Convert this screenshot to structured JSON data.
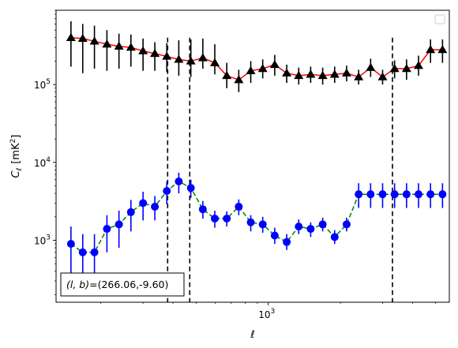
{
  "chart_data": {
    "type": "scatter",
    "xscale": "log",
    "yscale": "log",
    "xlim": [
      130,
      5700
    ],
    "ylim": [
      160,
      900000
    ],
    "xlabel": "ℓ",
    "ylabel": "C_ℓ  [mK²]",
    "ylabel_main": "C",
    "ylabel_sub": "ℓ",
    "ylabel_unit_pre": "[mK",
    "ylabel_unit_sup": "2",
    "ylabel_unit_post": "]",
    "x_tick_labels": [
      {
        "value": 1000,
        "base": "10",
        "exp": "3"
      }
    ],
    "y_tick_labels": [
      {
        "value": 1000,
        "base": "10",
        "exp": "3"
      },
      {
        "value": 10000,
        "base": "10",
        "exp": "4"
      },
      {
        "value": 100000,
        "base": "10",
        "exp": "5"
      }
    ],
    "annotation": "(l, b)=(266.06,-9.60)",
    "annotation_italic": "(l, b)",
    "annotation_value": "=(266.06,-9.60)",
    "legend": {
      "placement": "top-right",
      "entries": []
    },
    "vlines": [
      {
        "x": 380
      },
      {
        "x": 470
      },
      {
        "x": 3300
      }
    ],
    "series": [
      {
        "marker": "triangle",
        "marker_color": "#000000",
        "errorbar_color": "#000000",
        "line_color": "#ff0000",
        "line_style": "solid",
        "x": [
          150,
          168,
          188,
          212,
          238,
          267,
          300,
          336,
          377,
          423,
          475,
          533,
          598,
          671,
          753,
          845,
          948,
          1064,
          1194,
          1340,
          1503,
          1687,
          1893,
          2124,
          2384,
          2675,
          3001,
          3368,
          3779,
          4240,
          4758,
          5339
        ],
        "y": [
          400000,
          390000,
          360000,
          330000,
          310000,
          300000,
          270000,
          250000,
          230000,
          210000,
          200000,
          220000,
          190000,
          130000,
          115000,
          150000,
          160000,
          180000,
          140000,
          130000,
          135000,
          130000,
          135000,
          140000,
          125000,
          165000,
          125000,
          160000,
          160000,
          175000,
          280000,
          280000
        ],
        "yerr_low": [
          230000,
          250000,
          200000,
          180000,
          150000,
          130000,
          120000,
          100000,
          85000,
          80000,
          75000,
          60000,
          55000,
          40000,
          35000,
          45000,
          40000,
          50000,
          35000,
          30000,
          30000,
          30000,
          30000,
          30000,
          25000,
          40000,
          25000,
          40000,
          45000,
          45000,
          90000,
          90000
        ],
        "yerr_high": [
          250000,
          210000,
          210000,
          170000,
          140000,
          140000,
          120000,
          100000,
          110000,
          160000,
          180000,
          170000,
          140000,
          60000,
          40000,
          50000,
          50000,
          60000,
          40000,
          35000,
          35000,
          35000,
          35000,
          35000,
          30000,
          50000,
          30000,
          45000,
          50000,
          60000,
          100000,
          100000
        ]
      },
      {
        "marker": "circle",
        "marker_color": "#0000ff",
        "errorbar_color": "#0000ff",
        "line_color": "#008000",
        "line_style": "dashed",
        "x": [
          150,
          168,
          188,
          212,
          238,
          267,
          300,
          336,
          377,
          423,
          475,
          533,
          598,
          671,
          753,
          845,
          948,
          1064,
          1194,
          1340,
          1503,
          1687,
          1893,
          2124,
          2384,
          2675,
          3001,
          3368,
          3779,
          4240,
          4758,
          5339
        ],
        "y": [
          900,
          700,
          700,
          1400,
          1600,
          2300,
          3000,
          2700,
          4300,
          5700,
          4700,
          2500,
          1900,
          1900,
          2700,
          1700,
          1600,
          1150,
          950,
          1500,
          1400,
          1600,
          1100,
          1600,
          3900,
          3900,
          3900,
          3900,
          3900,
          3900,
          3900,
          3900
        ],
        "yerr_low": [
          550,
          450,
          450,
          700,
          800,
          1000,
          1200,
          900,
          1400,
          1700,
          1200,
          600,
          450,
          400,
          600,
          400,
          350,
          250,
          200,
          300,
          300,
          300,
          200,
          300,
          1300,
          1300,
          1300,
          1300,
          1300,
          1300,
          1300,
          1300
        ],
        "yerr_high": [
          600,
          500,
          500,
          700,
          800,
          1000,
          1200,
          1000,
          1400,
          1700,
          1300,
          700,
          500,
          450,
          650,
          400,
          400,
          300,
          250,
          350,
          300,
          350,
          250,
          350,
          1500,
          1500,
          1500,
          1500,
          1500,
          1500,
          1500,
          1500
        ]
      }
    ]
  }
}
